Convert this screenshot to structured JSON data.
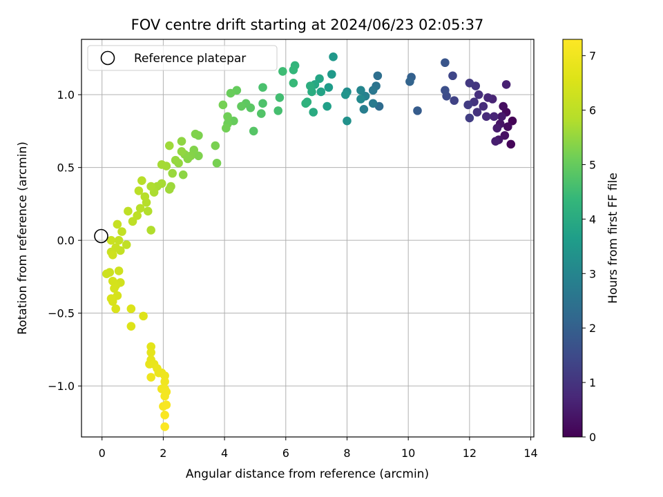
{
  "chart_data": {
    "type": "scatter",
    "title": "FOV centre drift starting at 2024/06/23 02:05:37",
    "xlabel": "Angular distance from reference (arcmin)",
    "ylabel": "Rotation from reference (arcmin)",
    "xlim": [
      -0.67,
      14.1
    ],
    "ylim": [
      -1.35,
      1.38
    ],
    "xticks": [
      0,
      2,
      4,
      6,
      8,
      10,
      12,
      14
    ],
    "yticks": [
      -1.0,
      -0.5,
      0.0,
      0.5,
      1.0
    ],
    "xtick_labels": [
      "0",
      "2",
      "4",
      "6",
      "8",
      "10",
      "12",
      "14"
    ],
    "ytick_labels": [
      "−1.0",
      "−0.5",
      "0.0",
      "0.5",
      "1.0"
    ],
    "grid": true,
    "legend": {
      "position": "upper-left",
      "entries": [
        "Reference platepar"
      ]
    },
    "reference_point": {
      "label": "Reference platepar",
      "x": 0.0,
      "y": 0.0
    },
    "colorbar": {
      "label": "Hours from first FF file",
      "colormap": "viridis",
      "range": [
        0,
        7.3
      ],
      "ticks": [
        0,
        1,
        2,
        3,
        4,
        5,
        6,
        7
      ],
      "tick_labels": [
        "0",
        "1",
        "2",
        "3",
        "4",
        "5",
        "6",
        "7"
      ]
    },
    "points": [
      [
        13.4,
        0.82,
        0.05
      ],
      [
        13.35,
        0.66,
        0.1
      ],
      [
        13.2,
        0.88,
        0.15
      ],
      [
        13.25,
        0.78,
        0.2
      ],
      [
        13.1,
        0.92,
        0.25
      ],
      [
        13.15,
        0.72,
        0.3
      ],
      [
        13.0,
        0.8,
        0.35
      ],
      [
        12.95,
        0.69,
        0.4
      ],
      [
        13.05,
        0.85,
        0.45
      ],
      [
        12.9,
        0.77,
        0.5
      ],
      [
        12.85,
        0.68,
        0.55
      ],
      [
        13.2,
        1.07,
        0.6
      ],
      [
        12.75,
        0.97,
        0.65
      ],
      [
        12.8,
        0.85,
        0.7
      ],
      [
        12.6,
        0.98,
        0.75
      ],
      [
        12.55,
        0.85,
        0.8
      ],
      [
        12.45,
        0.92,
        0.85
      ],
      [
        12.3,
        1.0,
        0.9
      ],
      [
        12.25,
        0.88,
        0.95
      ],
      [
        12.15,
        0.95,
        1.0
      ],
      [
        12.2,
        1.06,
        1.05
      ],
      [
        12.0,
        1.08,
        1.1
      ],
      [
        11.95,
        0.93,
        1.15
      ],
      [
        12.0,
        0.84,
        1.2
      ],
      [
        11.5,
        0.96,
        1.3
      ],
      [
        11.45,
        1.13,
        1.4
      ],
      [
        11.25,
        0.99,
        1.5
      ],
      [
        11.2,
        1.03,
        1.6
      ],
      [
        11.2,
        1.22,
        1.75
      ],
      [
        10.3,
        0.89,
        1.9
      ],
      [
        10.1,
        1.12,
        2.0
      ],
      [
        10.05,
        1.09,
        2.1
      ],
      [
        9.05,
        0.92,
        2.3
      ],
      [
        9.0,
        1.13,
        2.4
      ],
      [
        8.95,
        1.06,
        2.5
      ],
      [
        8.85,
        1.03,
        2.6
      ],
      [
        8.85,
        0.94,
        2.7
      ],
      [
        8.55,
        0.9,
        2.8
      ],
      [
        8.6,
        0.99,
        2.9
      ],
      [
        8.45,
        1.03,
        3.0
      ],
      [
        8.45,
        0.97,
        3.1
      ],
      [
        8.0,
        1.02,
        3.2
      ],
      [
        8.0,
        0.82,
        3.3
      ],
      [
        7.95,
        1.0,
        3.4
      ],
      [
        7.55,
        1.26,
        3.5
      ],
      [
        7.5,
        1.14,
        3.55
      ],
      [
        7.4,
        1.05,
        3.6
      ],
      [
        7.35,
        0.92,
        3.7
      ],
      [
        7.15,
        1.02,
        3.8
      ],
      [
        7.1,
        1.11,
        3.85
      ],
      [
        6.95,
        1.07,
        3.9
      ],
      [
        6.9,
        0.88,
        4.0
      ],
      [
        6.85,
        1.02,
        4.05
      ],
      [
        6.8,
        1.06,
        4.1
      ],
      [
        6.7,
        0.95,
        4.15
      ],
      [
        6.65,
        0.94,
        4.2
      ],
      [
        6.3,
        1.2,
        4.3
      ],
      [
        6.25,
        1.17,
        4.35
      ],
      [
        6.25,
        1.08,
        4.4
      ],
      [
        5.9,
        1.16,
        4.5
      ],
      [
        5.8,
        0.98,
        4.55
      ],
      [
        5.75,
        0.89,
        4.6
      ],
      [
        5.25,
        1.05,
        4.65
      ],
      [
        5.25,
        0.94,
        4.7
      ],
      [
        5.2,
        0.87,
        4.75
      ],
      [
        4.95,
        0.75,
        4.8
      ],
      [
        4.85,
        0.91,
        4.85
      ],
      [
        4.7,
        0.94,
        4.9
      ],
      [
        4.55,
        0.92,
        4.95
      ],
      [
        4.4,
        1.03,
        5.0
      ],
      [
        4.3,
        0.82,
        5.02
      ],
      [
        4.2,
        1.01,
        5.05
      ],
      [
        4.1,
        0.8,
        5.1
      ],
      [
        4.1,
        0.85,
        5.12
      ],
      [
        4.05,
        0.77,
        5.15
      ],
      [
        3.95,
        0.93,
        5.18
      ],
      [
        3.75,
        0.53,
        5.2
      ],
      [
        3.7,
        0.65,
        5.22
      ],
      [
        3.15,
        0.72,
        5.25
      ],
      [
        3.15,
        0.58,
        5.28
      ],
      [
        3.05,
        0.73,
        5.3
      ],
      [
        3.0,
        0.62,
        5.32
      ],
      [
        2.9,
        0.58,
        5.35
      ],
      [
        2.8,
        0.56,
        5.38
      ],
      [
        2.7,
        0.59,
        5.4
      ],
      [
        2.65,
        0.45,
        5.42
      ],
      [
        2.6,
        0.68,
        5.45
      ],
      [
        2.6,
        0.61,
        5.48
      ],
      [
        2.5,
        0.53,
        5.5
      ],
      [
        2.4,
        0.55,
        5.52
      ],
      [
        2.3,
        0.46,
        5.55
      ],
      [
        2.25,
        0.37,
        5.58
      ],
      [
        2.2,
        0.65,
        5.6
      ],
      [
        2.2,
        0.35,
        5.62
      ],
      [
        2.1,
        0.51,
        5.65
      ],
      [
        1.95,
        0.52,
        5.68
      ],
      [
        1.95,
        0.39,
        5.7
      ],
      [
        1.8,
        0.37,
        5.72
      ],
      [
        1.7,
        0.33,
        5.75
      ],
      [
        1.6,
        0.37,
        5.78
      ],
      [
        1.6,
        0.07,
        5.8
      ],
      [
        1.5,
        0.2,
        5.82
      ],
      [
        1.45,
        0.26,
        5.85
      ],
      [
        1.4,
        0.3,
        5.88
      ],
      [
        1.3,
        0.41,
        5.9
      ],
      [
        1.25,
        0.22,
        5.92
      ],
      [
        1.2,
        0.34,
        5.95
      ],
      [
        1.15,
        0.17,
        5.98
      ],
      [
        1.0,
        0.13,
        6.0
      ],
      [
        0.85,
        0.2,
        6.02
      ],
      [
        0.8,
        -0.03,
        6.05
      ],
      [
        0.65,
        0.06,
        6.08
      ],
      [
        0.6,
        -0.07,
        6.1
      ],
      [
        0.55,
        0.0,
        6.12
      ],
      [
        0.5,
        0.11,
        6.15
      ],
      [
        0.45,
        -0.05,
        6.18
      ],
      [
        0.3,
        -0.08,
        6.2
      ],
      [
        0.3,
        0.0,
        6.22
      ],
      [
        0.25,
        -0.22,
        6.25
      ],
      [
        0.15,
        -0.23,
        6.28
      ],
      [
        0.35,
        -0.1,
        6.3
      ],
      [
        0.55,
        -0.21,
        6.32
      ],
      [
        0.6,
        -0.29,
        6.35
      ],
      [
        0.45,
        -0.31,
        6.38
      ],
      [
        0.35,
        -0.28,
        6.4
      ],
      [
        0.4,
        -0.33,
        6.42
      ],
      [
        0.5,
        -0.38,
        6.45
      ],
      [
        0.35,
        -0.42,
        6.48
      ],
      [
        0.3,
        -0.4,
        6.5
      ],
      [
        0.45,
        -0.47,
        6.52
      ],
      [
        0.95,
        -0.47,
        6.55
      ],
      [
        0.95,
        -0.59,
        6.58
      ],
      [
        1.35,
        -0.52,
        6.6
      ],
      [
        1.6,
        -0.73,
        6.7
      ],
      [
        1.6,
        -0.77,
        6.75
      ],
      [
        1.6,
        -0.82,
        6.8
      ],
      [
        1.55,
        -0.85,
        6.82
      ],
      [
        1.7,
        -0.85,
        6.85
      ],
      [
        1.8,
        -0.88,
        6.88
      ],
      [
        1.85,
        -0.91,
        6.9
      ],
      [
        1.95,
        -0.91,
        6.92
      ],
      [
        2.05,
        -0.93,
        6.95
      ],
      [
        1.6,
        -0.94,
        6.98
      ],
      [
        2.05,
        -0.97,
        7.0
      ],
      [
        1.95,
        -1.02,
        7.02
      ],
      [
        2.05,
        -1.02,
        7.05
      ],
      [
        2.1,
        -1.04,
        7.08
      ],
      [
        2.05,
        -1.07,
        7.1
      ],
      [
        2.0,
        -1.14,
        7.15
      ],
      [
        2.1,
        -1.13,
        7.18
      ],
      [
        2.05,
        -1.2,
        7.2
      ],
      [
        2.05,
        -1.28,
        7.25
      ]
    ]
  }
}
